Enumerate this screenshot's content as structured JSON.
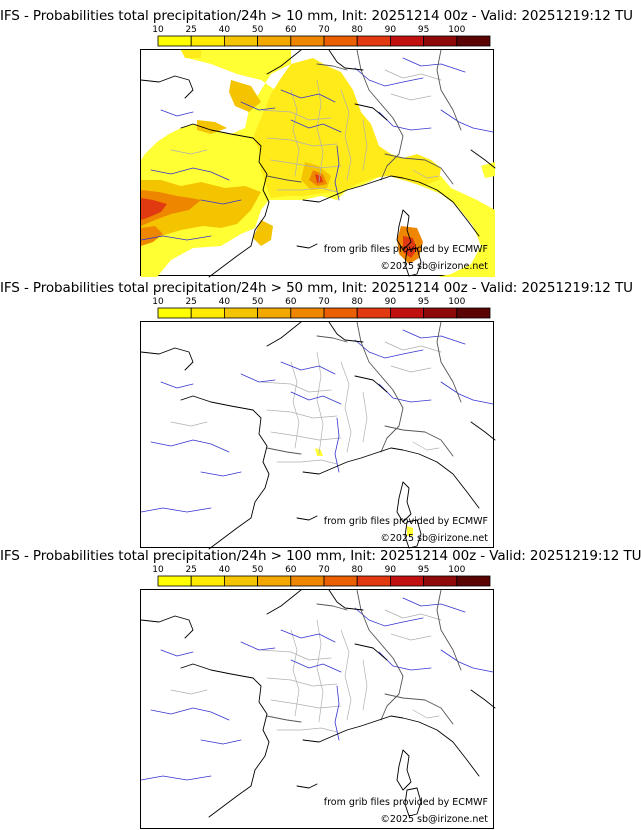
{
  "colorbar": {
    "ticks": [
      "10",
      "25",
      "40",
      "50",
      "60",
      "70",
      "80",
      "90",
      "95",
      "100"
    ],
    "colors": [
      "#ffff00",
      "#ffea00",
      "#f5c400",
      "#f2a800",
      "#ee8600",
      "#ea5f00",
      "#e23a10",
      "#c01010",
      "#8e0a0a",
      "#5a0404"
    ]
  },
  "panels": [
    {
      "title": "IFS - Probabilities total precipitation/24h > 10 mm, Init: 20251214 00z - Valid: 20251219:12 TU",
      "source": "from grib files provided by ECMWF",
      "copyright": "©2025 sb@irizone.net",
      "field": "heavy"
    },
    {
      "title": "IFS - Probabilities total precipitation/24h > 50 mm, Init: 20251214 00z - Valid: 20251219:12 TU",
      "source": "from grib files provided by ECMWF",
      "copyright": "©2025 sb@irizone.net",
      "field": "light"
    },
    {
      "title": "IFS - Probabilities total precipitation/24h > 100 mm, Init: 20251214 00z - Valid: 20251219:12 TU",
      "source": "from grib files provided by ECMWF",
      "copyright": "©2025 sb@irizone.net",
      "field": "none"
    }
  ]
}
